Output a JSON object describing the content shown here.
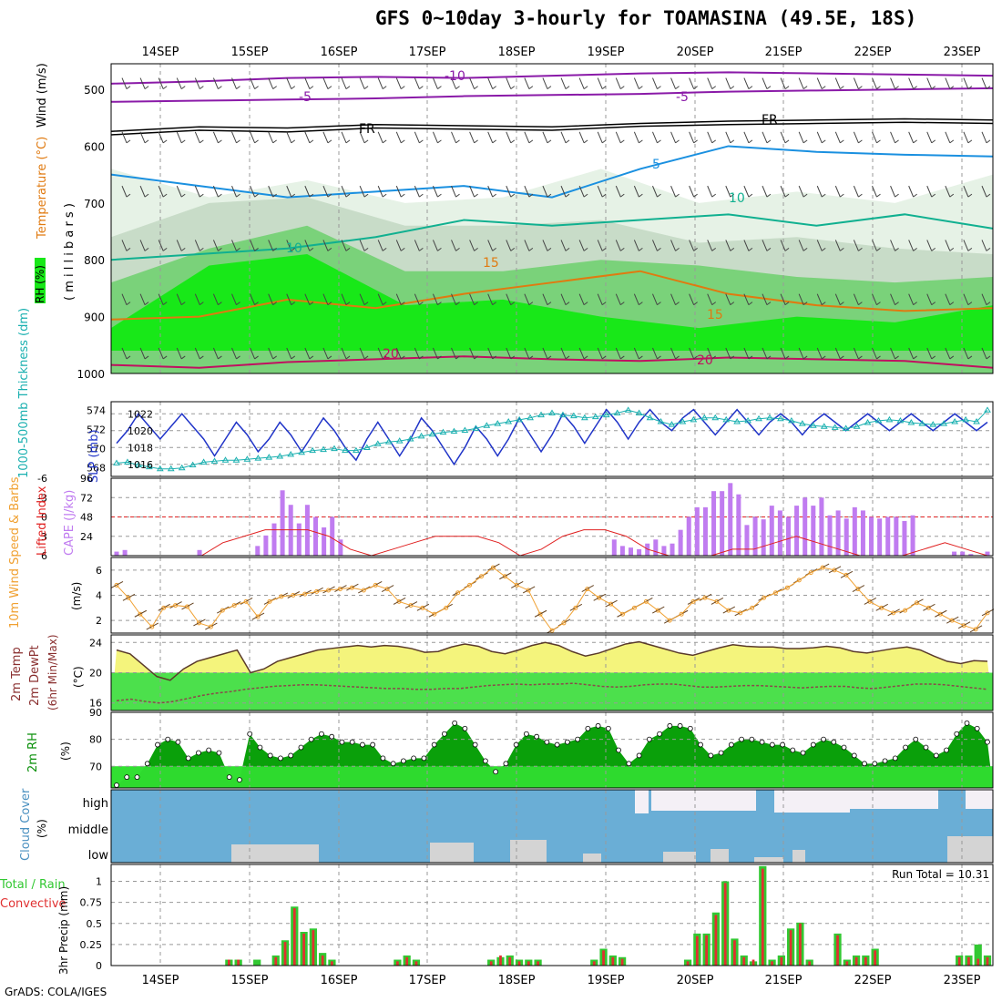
{
  "title": "GFS 0~10day 3-hourly for TOAMASINA (49.5E, 18S)",
  "footer": "GrADS: COLA/IGES",
  "run_total_label": "Run Total = 10.31",
  "days": [
    "14SEP",
    "15SEP",
    "16SEP",
    "17SEP",
    "18SEP",
    "19SEP",
    "20SEP",
    "21SEP",
    "22SEP",
    "23SEP"
  ],
  "colors": {
    "slp": "#2034c8",
    "thickness": "#1ab0b0",
    "cape": "#c07cf0",
    "lifted": "#e02020",
    "wind": "#f0a030",
    "temp_fill": "#f4f47c",
    "dew_fill": "#4ce04c",
    "rh_fill_dark": "#0aa00a",
    "rh_fill_light": "#32e032",
    "cloud_bg": "#6aaed6",
    "cloud_fill": "#d4d4d4",
    "precip_total": "#32c832",
    "precip_conv": "#e03030"
  },
  "panels": {
    "upper": {
      "ylabel_rh": "RH (%)",
      "ylabel_temp": "Temperature (°C)",
      "ylabel_wind": "Wind (m/s)",
      "ylabel_mb": "( m i l l i b a r s )",
      "levels": [
        "500",
        "600",
        "700",
        "800",
        "900",
        "1000"
      ],
      "contour_labels": [
        {
          "text": "-10",
          "color": "#8a1aa8"
        },
        {
          "text": "-5",
          "color": "#8a1aa8"
        },
        {
          "text": "-5",
          "color": "#8a1aa8"
        },
        {
          "text": "FR",
          "color": "#000000"
        },
        {
          "text": "FR",
          "color": "#000000"
        },
        {
          "text": "5",
          "color": "#1a90e0"
        },
        {
          "text": "10",
          "color": "#10b090"
        },
        {
          "text": "10",
          "color": "#10b090"
        },
        {
          "text": "15",
          "color": "#e07a10"
        },
        {
          "text": "15",
          "color": "#e07a10"
        },
        {
          "text": "20",
          "color": "#c01060"
        },
        {
          "text": "20",
          "color": "#c01060"
        }
      ]
    },
    "slp": {
      "ylabel_thick": "1000-500mb Thickness (dm)",
      "ylabel_slp": "SLP (mb)",
      "left_ticks": [
        "568",
        "570",
        "572",
        "574"
      ],
      "right_ticks": [
        "1016",
        "1018",
        "1020",
        "1022"
      ]
    },
    "cape": {
      "ylabel_li": "Lifted Index",
      "ylabel_cape": "CAPE (J/kg)",
      "left_ticks": [
        "6",
        "3",
        "0",
        "-3",
        "-6"
      ],
      "right_ticks": [
        "24",
        "48",
        "72",
        "96"
      ]
    },
    "wind10": {
      "ylabel": "10m Wind Speed & Barbs",
      "ylabel_unit": "(m/s)",
      "ticks": [
        "2",
        "4",
        "6"
      ]
    },
    "temp2m": {
      "ylabel_temp": "2m Temp",
      "ylabel_dew": "2m DewPt",
      "ylabel_minmax": "(6hr Min/Max)",
      "ylabel_unit": "(°C)",
      "ticks": [
        "16",
        "20",
        "24"
      ]
    },
    "rh2m": {
      "ylabel": "2m RH",
      "ylabel_unit": "(%)",
      "ticks": [
        "70",
        "80",
        "90"
      ]
    },
    "cloud": {
      "ylabel": "Cloud Cover",
      "ylabel_unit": "(%)",
      "ticks": [
        "high",
        "middle",
        "low"
      ]
    },
    "precip": {
      "ylabel_total": "Total / Rain",
      "ylabel_conv": "Convective",
      "ylabel": "3hr Precip (mm)",
      "ticks": [
        "0",
        "0.25",
        "0.5",
        "0.75",
        "1"
      ]
    }
  },
  "chart_data": [
    {
      "type": "line",
      "title": "SLP and 1000-500mb Thickness",
      "ylabel": "SLP (mb)",
      "ylim": [
        1015,
        1023
      ],
      "series": [
        {
          "name": "SLP (mb)",
          "values": [
            1018.5,
            1020,
            1022,
            1020.5,
            1019,
            1020.5,
            1022,
            1020.5,
            1019,
            1017,
            1019,
            1021,
            1019.5,
            1017.5,
            1019,
            1021,
            1019.5,
            1017.5,
            1019.5,
            1021.5,
            1020,
            1018,
            1016.5,
            1019,
            1021,
            1019,
            1017,
            1019,
            1021.5,
            1020,
            1018,
            1016,
            1018,
            1020.5,
            1019,
            1017,
            1019,
            1021.5,
            1019.5,
            1017.5,
            1019.5,
            1022,
            1020.5,
            1018.5,
            1020.5,
            1022.5,
            1021,
            1019,
            1021,
            1022.5,
            1021,
            1020,
            1021.5,
            1022.5,
            1021,
            1019.5,
            1021,
            1022.5,
            1021,
            1019.5,
            1021,
            1022,
            1021,
            1019.5,
            1021,
            1022,
            1021,
            1020,
            1021,
            1022,
            1021,
            1020,
            1021,
            1022,
            1021,
            1020,
            1021,
            1022,
            1021,
            1020,
            1021
          ]
        }
      ]
    },
    {
      "type": "line",
      "title": "1000-500mb Thickness",
      "ylabel": "1000-500mb Thickness (dm)",
      "ylim": [
        567.5,
        574.5
      ],
      "series": [
        {
          "name": "1000-500mb Thickness (dm)",
          "values": [
            568.5,
            568.6,
            568.3,
            568.1,
            567.9,
            567.9,
            568.0,
            568.3,
            568.6,
            568.7,
            568.8,
            568.8,
            568.9,
            569.0,
            569.1,
            569.2,
            569.4,
            569.6,
            569.8,
            569.9,
            570.0,
            569.8,
            569.8,
            570.1,
            570.5,
            570.7,
            570.8,
            571.0,
            571.3,
            571.5,
            571.7,
            571.8,
            571.9,
            572.1,
            572.4,
            572.6,
            572.8,
            573.0,
            573.2,
            573.5,
            573.7,
            573.5,
            573.4,
            573.2,
            573.3,
            573.5,
            573.7,
            574.0,
            573.7,
            573.2,
            572.8,
            572.5,
            572.8,
            573.0,
            573.2,
            573.2,
            573.0,
            572.8,
            572.9,
            573.1,
            573.2,
            573.1,
            572.9,
            572.6,
            572.4,
            572.3,
            572.2,
            572.1,
            572.3,
            572.7,
            572.9,
            573.0,
            572.9,
            572.7,
            572.6,
            572.5,
            572.6,
            572.8,
            573.0,
            572.8,
            574.0
          ]
        }
      ]
    },
    {
      "type": "bar",
      "title": "CAPE",
      "ylabel": "CAPE (J/kg)",
      "ylim": [
        0,
        96
      ],
      "series": [
        {
          "name": "CAPE (J/kg)",
          "values": [
            5,
            7,
            0,
            0,
            0,
            0,
            0,
            0,
            0,
            0,
            7,
            0,
            0,
            0,
            0,
            0,
            0,
            12,
            25,
            40,
            81,
            63,
            40,
            63,
            48,
            35,
            48,
            20,
            0,
            0,
            0,
            0,
            0,
            0,
            0,
            0,
            0,
            0,
            0,
            0,
            0,
            0,
            0,
            0,
            0,
            0,
            0,
            0,
            0,
            0,
            0,
            0,
            0,
            0,
            0,
            0,
            0,
            0,
            0,
            0,
            20,
            12,
            10,
            8,
            15,
            20,
            12,
            15,
            32,
            48,
            60,
            60,
            80,
            80,
            90,
            76,
            38,
            48,
            45,
            62,
            56,
            48,
            62,
            72,
            62,
            72,
            50,
            56,
            46,
            60,
            56,
            48,
            46,
            48,
            48,
            43,
            50,
            0,
            0,
            0,
            0,
            5,
            5,
            2,
            0,
            5
          ]
        }
      ]
    },
    {
      "type": "line",
      "title": "10m Wind Speed",
      "ylabel": "(m/s)",
      "ylim": [
        1,
        7
      ],
      "series": [
        {
          "name": "10m Wind Speed",
          "values": [
            4.8,
            3.8,
            2.5,
            1.5,
            3,
            3.2,
            3.1,
            1.8,
            1.5,
            2.8,
            3.2,
            3.5,
            2.3,
            3.5,
            3.9,
            4.0,
            4.1,
            4.3,
            4.4,
            4.5,
            4.6,
            4.4,
            4.8,
            4.5,
            3.5,
            3.2,
            3.0,
            2.5,
            3.0,
            4.2,
            4.8,
            5.5,
            6.2,
            5.5,
            4.8,
            4.4,
            2.5,
            1.2,
            1.8,
            3.0,
            4.5,
            3.8,
            3.3,
            2.5,
            3.0,
            3.5,
            2.8,
            2.0,
            2.5,
            3.5,
            3.8,
            3.5,
            2.8,
            2.6,
            3.0,
            3.8,
            4.2,
            4.6,
            5.2,
            5.8,
            6.2,
            6.0,
            5.6,
            4.5,
            3.5,
            3.0,
            2.6,
            2.8,
            3.4,
            3.0,
            2.5,
            2.0,
            1.6,
            1.3,
            2.6
          ]
        }
      ]
    },
    {
      "type": "line",
      "title": "2m Temperature and Dew Point",
      "ylabel": "(°C)",
      "ylim": [
        15,
        25
      ],
      "series": [
        {
          "name": "2m Temp",
          "values": [
            23,
            22.5,
            21,
            19.5,
            19,
            20.5,
            21.5,
            22,
            22.5,
            23,
            20,
            20.5,
            21.5,
            22,
            22.5,
            23,
            23.2,
            23.4,
            23.6,
            23.4,
            23.6,
            23.5,
            23.2,
            22.7,
            22.8,
            23.4,
            23.8,
            23.5,
            22.8,
            22.5,
            23.0,
            23.6,
            24.0,
            23.6,
            22.8,
            22.2,
            22.6,
            23.2,
            23.8,
            24.1,
            23.6,
            23.1,
            22.6,
            22.3,
            22.8,
            23.3,
            23.7,
            23.5,
            23.4,
            23.4,
            23.2,
            23.2,
            23.3,
            23.5,
            23.3,
            22.8,
            22.6,
            22.9,
            23.2,
            23.4,
            23.0,
            22.2,
            21.5,
            21.2,
            21.6,
            21.5
          ]
        },
        {
          "name": "2m DewPt",
          "values": [
            16.3,
            16.5,
            16.2,
            16.0,
            16.2,
            16.6,
            17.0,
            17.3,
            17.5,
            17.8,
            18.0,
            18.2,
            18.3,
            18.4,
            18.4,
            18.3,
            18.2,
            18.1,
            18.0,
            17.9,
            17.9,
            17.8,
            17.8,
            17.9,
            17.9,
            18.1,
            18.3,
            18.4,
            18.5,
            18.4,
            18.5,
            18.5,
            18.6,
            18.4,
            18.2,
            18.1,
            18.2,
            18.4,
            18.5,
            18.5,
            18.3,
            18.1,
            18.1,
            18.2,
            18.3,
            18.3,
            18.2,
            18.1,
            18.0,
            18.1,
            18.2,
            18.2,
            18.0,
            17.9,
            18.1,
            18.3,
            18.5,
            18.5,
            18.4,
            18.2,
            18.0,
            17.8
          ]
        }
      ]
    },
    {
      "type": "area",
      "title": "2m RH",
      "ylabel": "(%)",
      "ylim": [
        62,
        90
      ],
      "series": [
        {
          "name": "2m RH",
          "values": [
            63,
            66,
            66,
            71,
            78,
            80,
            79,
            73,
            75,
            76,
            75,
            66,
            65,
            82,
            77,
            74,
            73,
            74,
            77,
            80,
            82,
            81,
            79,
            79,
            78,
            78,
            73,
            71,
            72,
            73,
            73,
            78,
            82,
            86,
            84,
            78,
            72,
            68,
            71,
            78,
            82,
            81,
            79,
            78,
            79,
            80,
            84,
            85,
            84,
            76,
            71,
            74,
            80,
            82,
            85,
            85,
            84,
            78,
            74,
            75,
            78,
            80,
            80,
            79,
            78,
            78,
            76,
            75,
            78,
            80,
            79,
            77,
            74,
            71,
            71,
            72,
            73,
            77,
            80,
            77,
            74,
            76,
            82,
            86,
            84,
            79
          ]
        }
      ]
    },
    {
      "type": "bar",
      "title": "3hr Precip",
      "ylabel": "3hr Precip (mm)",
      "ylim": [
        0,
        1.2
      ],
      "series": [
        {
          "name": "Total / Rain",
          "values": [
            0,
            0,
            0,
            0,
            0,
            0,
            0,
            0,
            0,
            0,
            0,
            0,
            0.07,
            0.07,
            0,
            0.07,
            0,
            0.12,
            0.3,
            0.7,
            0.4,
            0.44,
            0.15,
            0.07,
            0,
            0,
            0,
            0,
            0,
            0,
            0.07,
            0.12,
            0.07,
            0,
            0,
            0,
            0,
            0,
            0,
            0,
            0.07,
            0.1,
            0.12,
            0.07,
            0.07,
            0.07,
            0,
            0,
            0,
            0,
            0,
            0.07,
            0.2,
            0.12,
            0.1,
            0,
            0,
            0,
            0,
            0,
            0,
            0.07,
            0.38,
            0.38,
            0.63,
            1.0,
            0.32,
            0.12,
            0.05,
            1.18,
            0.07,
            0.12,
            0.44,
            0.51,
            0.07,
            0,
            0,
            0.38,
            0.07,
            0.12,
            0.12,
            0.2,
            0,
            0,
            0,
            0,
            0,
            0,
            0,
            0,
            0.12,
            0.12,
            0.25,
            0.12
          ]
        },
        {
          "name": "Convective",
          "values": [
            0,
            0,
            0,
            0,
            0,
            0,
            0,
            0,
            0,
            0,
            0,
            0,
            0.07,
            0.07,
            0,
            0,
            0,
            0.1,
            0.28,
            0.68,
            0.38,
            0.42,
            0.12,
            0.05,
            0,
            0,
            0,
            0,
            0,
            0,
            0.05,
            0.1,
            0.05,
            0,
            0,
            0,
            0,
            0,
            0,
            0,
            0.05,
            0.12,
            0.1,
            0.05,
            0.05,
            0.05,
            0,
            0,
            0,
            0,
            0,
            0.05,
            0.18,
            0.1,
            0.08,
            0,
            0,
            0,
            0,
            0,
            0,
            0.05,
            0.35,
            0.36,
            0.6,
            0.98,
            0.3,
            0.1,
            0.07,
            1.15,
            0.05,
            0.1,
            0.42,
            0.5,
            0.05,
            0,
            0,
            0.36,
            0.05,
            0.1,
            0.1,
            0.18,
            0,
            0,
            0,
            0,
            0,
            0,
            0,
            0,
            0.1,
            0.1,
            0.08,
            0.1
          ]
        }
      ]
    }
  ]
}
